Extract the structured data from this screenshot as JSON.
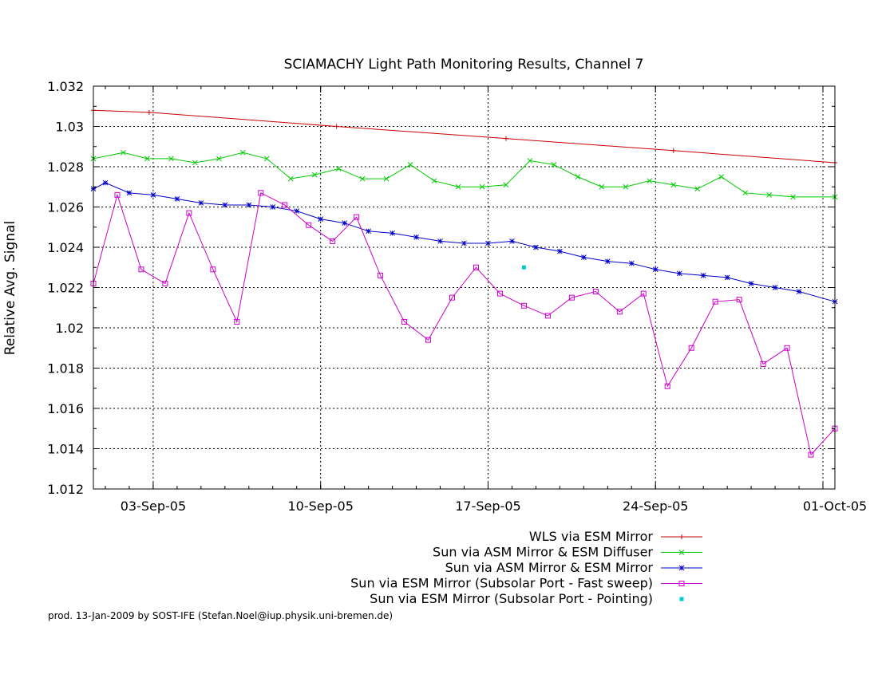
{
  "chart_data": {
    "type": "line",
    "title": "SCIAMACHY Light Path Monitoring Results, Channel 7",
    "xlabel": "",
    "ylabel": "Relative Avg. Signal",
    "x_range": [
      "2005-08-31T12:00",
      "2005-10-01T12:00"
    ],
    "ylim": [
      1.012,
      1.032
    ],
    "grid": true,
    "legend_position": "below-right",
    "x_tick_labels": [
      "03-Sep-05",
      "10-Sep-05",
      "17-Sep-05",
      "24-Sep-05",
      "01-Oct-05"
    ],
    "x_tick_dates": [
      "2005-09-03",
      "2005-09-10",
      "2005-09-17",
      "2005-09-24",
      "2005-10-01"
    ],
    "y_tick_labels": [
      "1.012",
      "1.014",
      "1.016",
      "1.018",
      "1.02",
      "1.022",
      "1.024",
      "1.026",
      "1.028",
      "1.03",
      "1.032"
    ],
    "y_ticks": [
      1.012,
      1.014,
      1.016,
      1.018,
      1.02,
      1.022,
      1.024,
      1.026,
      1.028,
      1.03,
      1.032
    ],
    "series": [
      {
        "name": "WLS via ESM Mirror",
        "color": "#cc0000",
        "marker": "plus",
        "points": [
          [
            "2005-08-31T12:00",
            1.0308
          ],
          [
            "2005-09-02T20:00",
            1.0307
          ],
          [
            "2005-09-10T16:00",
            1.03
          ],
          [
            "2005-09-17T18:00",
            1.0294
          ],
          [
            "2005-09-24T18:00",
            1.0288
          ],
          [
            "2005-10-01T12:00",
            1.0282
          ]
        ]
      },
      {
        "name": "Sun via ASM Mirror & ESM Diffuser",
        "color": "#00cc00",
        "marker": "x",
        "points": [
          [
            "2005-08-31T12:00",
            1.0284
          ],
          [
            "2005-09-01T18:00",
            1.0287
          ],
          [
            "2005-09-02T18:00",
            1.0284
          ],
          [
            "2005-09-03T18:00",
            1.0284
          ],
          [
            "2005-09-04T18:00",
            1.0282
          ],
          [
            "2005-09-05T18:00",
            1.0284
          ],
          [
            "2005-09-06T18:00",
            1.0287
          ],
          [
            "2005-09-07T18:00",
            1.0284
          ],
          [
            "2005-09-08T18:00",
            1.0274
          ],
          [
            "2005-09-09T18:00",
            1.0276
          ],
          [
            "2005-09-10T18:00",
            1.0279
          ],
          [
            "2005-09-11T18:00",
            1.0274
          ],
          [
            "2005-09-12T18:00",
            1.0274
          ],
          [
            "2005-09-13T18:00",
            1.0281
          ],
          [
            "2005-09-14T18:00",
            1.0273
          ],
          [
            "2005-09-15T18:00",
            1.027
          ],
          [
            "2005-09-16T18:00",
            1.027
          ],
          [
            "2005-09-17T18:00",
            1.0271
          ],
          [
            "2005-09-18T18:00",
            1.0283
          ],
          [
            "2005-09-19T18:00",
            1.0281
          ],
          [
            "2005-09-20T18:00",
            1.0275
          ],
          [
            "2005-09-21T18:00",
            1.027
          ],
          [
            "2005-09-22T18:00",
            1.027
          ],
          [
            "2005-09-23T18:00",
            1.0273
          ],
          [
            "2005-09-24T18:00",
            1.0271
          ],
          [
            "2005-09-25T18:00",
            1.0269
          ],
          [
            "2005-09-26T18:00",
            1.0275
          ],
          [
            "2005-09-27T18:00",
            1.0267
          ],
          [
            "2005-09-28T18:00",
            1.0266
          ],
          [
            "2005-09-29T18:00",
            1.0265
          ],
          [
            "2005-10-01T12:00",
            1.0265
          ]
        ]
      },
      {
        "name": "Sun via ASM Mirror & ESM Mirror",
        "color": "#0000cc",
        "marker": "star",
        "points": [
          [
            "2005-08-31T12:00",
            1.0269
          ],
          [
            "2005-09-01T00:00",
            1.0272
          ],
          [
            "2005-09-02T00:00",
            1.0267
          ],
          [
            "2005-09-03T00:00",
            1.0266
          ],
          [
            "2005-09-04T00:00",
            1.0264
          ],
          [
            "2005-09-05T00:00",
            1.0262
          ],
          [
            "2005-09-06T00:00",
            1.0261
          ],
          [
            "2005-09-07T00:00",
            1.0261
          ],
          [
            "2005-09-08T00:00",
            1.026
          ],
          [
            "2005-09-09T00:00",
            1.0258
          ],
          [
            "2005-09-10T00:00",
            1.0254
          ],
          [
            "2005-09-11T00:00",
            1.0252
          ],
          [
            "2005-09-12T00:00",
            1.0248
          ],
          [
            "2005-09-13T00:00",
            1.0247
          ],
          [
            "2005-09-14T00:00",
            1.0245
          ],
          [
            "2005-09-15T00:00",
            1.0243
          ],
          [
            "2005-09-16T00:00",
            1.0242
          ],
          [
            "2005-09-17T00:00",
            1.0242
          ],
          [
            "2005-09-18T00:00",
            1.0243
          ],
          [
            "2005-09-19T00:00",
            1.024
          ],
          [
            "2005-09-20T00:00",
            1.0238
          ],
          [
            "2005-09-21T00:00",
            1.0235
          ],
          [
            "2005-09-22T00:00",
            1.0233
          ],
          [
            "2005-09-23T00:00",
            1.0232
          ],
          [
            "2005-09-24T00:00",
            1.0229
          ],
          [
            "2005-09-25T00:00",
            1.0227
          ],
          [
            "2005-09-26T00:00",
            1.0226
          ],
          [
            "2005-09-27T00:00",
            1.0225
          ],
          [
            "2005-09-28T00:00",
            1.0222
          ],
          [
            "2005-09-29T00:00",
            1.022
          ],
          [
            "2005-09-30T00:00",
            1.0218
          ],
          [
            "2005-10-01T12:00",
            1.0213
          ]
        ]
      },
      {
        "name": "Sun via ESM Mirror (Subsolar Port - Fast sweep)",
        "color": "#cc00cc",
        "marker": "square",
        "points": [
          [
            "2005-08-31T12:00",
            1.0222
          ],
          [
            "2005-09-01T12:00",
            1.0266
          ],
          [
            "2005-09-02T12:00",
            1.0229
          ],
          [
            "2005-09-03T12:00",
            1.0222
          ],
          [
            "2005-09-04T12:00",
            1.0257
          ],
          [
            "2005-09-05T12:00",
            1.0229
          ],
          [
            "2005-09-06T12:00",
            1.0203
          ],
          [
            "2005-09-07T12:00",
            1.0267
          ],
          [
            "2005-09-08T12:00",
            1.0261
          ],
          [
            "2005-09-09T12:00",
            1.0251
          ],
          [
            "2005-09-10T12:00",
            1.0243
          ],
          [
            "2005-09-11T12:00",
            1.0255
          ],
          [
            "2005-09-12T12:00",
            1.0226
          ],
          [
            "2005-09-13T12:00",
            1.0203
          ],
          [
            "2005-09-14T12:00",
            1.0194
          ],
          [
            "2005-09-15T12:00",
            1.0215
          ],
          [
            "2005-09-16T12:00",
            1.023
          ],
          [
            "2005-09-17T12:00",
            1.0217
          ],
          [
            "2005-09-18T12:00",
            1.0211
          ],
          [
            "2005-09-19T12:00",
            1.0206
          ],
          [
            "2005-09-20T12:00",
            1.0215
          ],
          [
            "2005-09-21T12:00",
            1.0218
          ],
          [
            "2005-09-22T12:00",
            1.0208
          ],
          [
            "2005-09-23T12:00",
            1.0217
          ],
          [
            "2005-09-24T12:00",
            1.0171
          ],
          [
            "2005-09-25T12:00",
            1.019
          ],
          [
            "2005-09-26T12:00",
            1.0213
          ],
          [
            "2005-09-27T12:00",
            1.0214
          ],
          [
            "2005-09-28T12:00",
            1.0182
          ],
          [
            "2005-09-29T12:00",
            1.019
          ],
          [
            "2005-09-30T12:00",
            1.0137
          ],
          [
            "2005-10-01T12:00",
            1.015
          ]
        ]
      },
      {
        "name": "Sun via ESM Mirror (Subsolar Port - Pointing)",
        "color": "#00cccc",
        "marker": "dot",
        "points": [
          [
            "2005-09-18T12:00",
            1.023
          ]
        ]
      }
    ]
  },
  "footer": "prod. 13-Jan-2009 by SOST-IFE (Stefan.Noel@iup.physik.uni-bremen.de)"
}
